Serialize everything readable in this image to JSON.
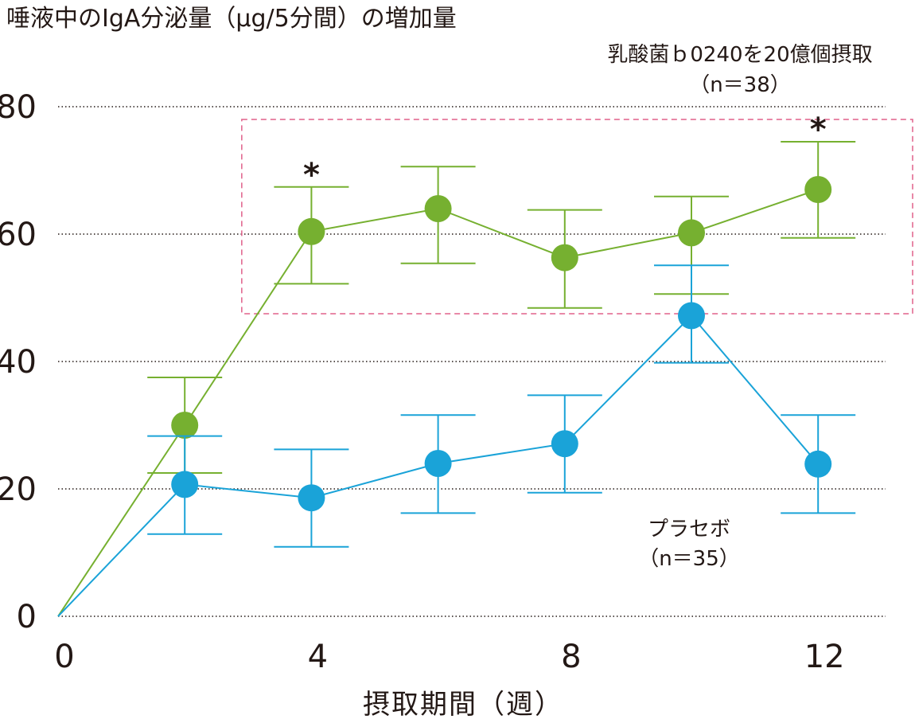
{
  "chart_data": {
    "type": "line",
    "title": "唾液中のIgA分泌量（μg/5分間）の増加量",
    "xlabel": "摂取期間（週）",
    "ylabel": "",
    "x_ticks": [
      "0",
      "4",
      "8",
      "12"
    ],
    "y_ticks": [
      "0",
      "20",
      "40",
      "60",
      "80"
    ],
    "xlim": [
      0,
      13
    ],
    "ylim": [
      0,
      80
    ],
    "grid": "horizontal-dotted",
    "highlight_box": {
      "x_range": [
        2.9,
        13.5
      ],
      "y_range": [
        47.5,
        78
      ],
      "color": "#e0608a"
    },
    "series": [
      {
        "key": "lactic",
        "color": "#76b030",
        "label_lines": [
          "乳酸菌ｂ0240を20億個摂取",
          "（n＝38）"
        ],
        "points": [
          {
            "x": 0,
            "y": 0
          },
          {
            "x": 2,
            "y": 30,
            "err_low": 22.5,
            "err_high": 37.5
          },
          {
            "x": 4,
            "y": 60.4,
            "err_low": 52.2,
            "err_high": 67.4,
            "sig": "*"
          },
          {
            "x": 6,
            "y": 64,
            "err_low": 55.4,
            "err_high": 70.6
          },
          {
            "x": 8,
            "y": 56.3,
            "err_low": 48.4,
            "err_high": 63.8
          },
          {
            "x": 10,
            "y": 60.2,
            "err_low": 50.6,
            "err_high": 65.9
          },
          {
            "x": 12,
            "y": 67,
            "err_low": 59.4,
            "err_high": 74.5,
            "sig": "*"
          }
        ]
      },
      {
        "key": "placebo",
        "color": "#1aa3d8",
        "label_lines": [
          "プラセボ",
          "（n＝35）"
        ],
        "points": [
          {
            "x": 0,
            "y": 0
          },
          {
            "x": 2,
            "y": 20.7,
            "err_low": 12.9,
            "err_high": 28.3
          },
          {
            "x": 4,
            "y": 18.6,
            "err_low": 10.9,
            "err_high": 26.2
          },
          {
            "x": 6,
            "y": 24,
            "err_low": 16.2,
            "err_high": 31.6
          },
          {
            "x": 8,
            "y": 27.1,
            "err_low": 19.4,
            "err_high": 34.7
          },
          {
            "x": 10,
            "y": 47.2,
            "err_low": 39.8,
            "err_high": 55.1
          },
          {
            "x": 12,
            "y": 23.9,
            "err_low": 16.2,
            "err_high": 31.6
          }
        ]
      }
    ]
  }
}
